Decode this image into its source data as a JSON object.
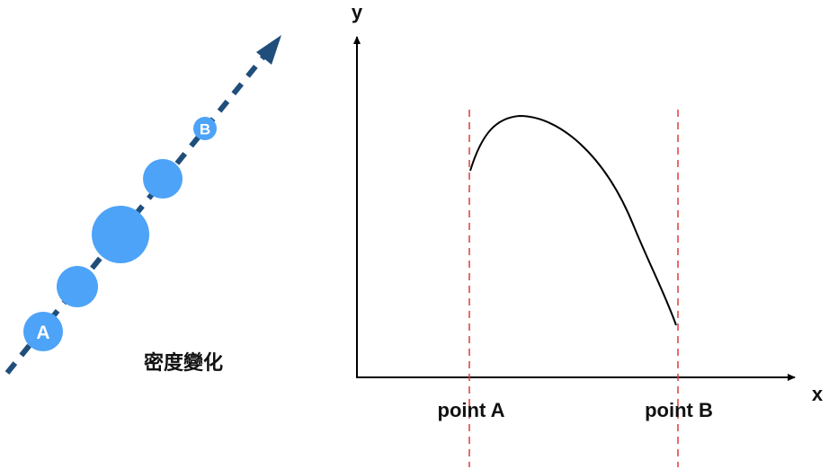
{
  "diagram": {
    "density_label": "密度變化",
    "marker_a": "A",
    "marker_b": "B",
    "axis_y_label": "y",
    "axis_x_label": "x",
    "point_a_label": "point A",
    "point_b_label": "point B"
  },
  "colors": {
    "arrow": "#1f4e7a",
    "circle": "#4da3f7",
    "curve": "#000000",
    "guide": "#e03b3b",
    "axis": "#000000"
  }
}
